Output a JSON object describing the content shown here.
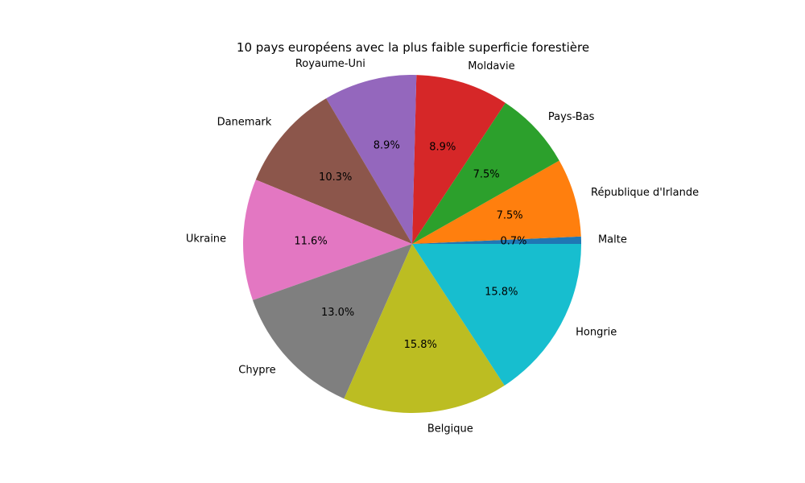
{
  "chart_data": {
    "type": "pie",
    "title": "10 pays européens avec la plus faible superficie forestière",
    "start_angle_deg": 0,
    "direction": "counterclockwise",
    "slices": [
      {
        "label": "Malte",
        "value": 0.7,
        "pct_text": "0.7%",
        "color": "#1f77b4"
      },
      {
        "label": "République d'Irlande",
        "value": 7.5,
        "pct_text": "7.5%",
        "color": "#ff7f0e"
      },
      {
        "label": "Pays-Bas",
        "value": 7.5,
        "pct_text": "7.5%",
        "color": "#2ca02c"
      },
      {
        "label": "Moldavie",
        "value": 8.9,
        "pct_text": "8.9%",
        "color": "#d62728"
      },
      {
        "label": "Royaume-Uni",
        "value": 8.9,
        "pct_text": "8.9%",
        "color": "#9467bd"
      },
      {
        "label": "Danemark",
        "value": 10.3,
        "pct_text": "10.3%",
        "color": "#8c564b"
      },
      {
        "label": "Ukraine",
        "value": 11.6,
        "pct_text": "11.6%",
        "color": "#e377c2"
      },
      {
        "label": "Chypre",
        "value": 13.0,
        "pct_text": "13.0%",
        "color": "#7f7f7f"
      },
      {
        "label": "Belgique",
        "value": 15.8,
        "pct_text": "15.8%",
        "color": "#bcbd22"
      },
      {
        "label": "Hongrie",
        "value": 15.8,
        "pct_text": "15.8%",
        "color": "#17becf"
      }
    ]
  }
}
